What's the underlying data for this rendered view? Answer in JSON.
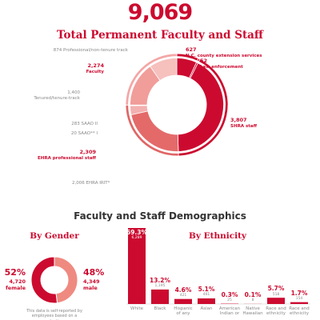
{
  "header": {
    "total": "9,069",
    "title": "Total Permanent Faculty and Staff"
  },
  "section_title": "Faculty and Staff Demographics",
  "chart_data": [
    {
      "type": "donut",
      "segments": [
        {
          "name": "N.C. county extension services",
          "value": 627,
          "value_label": "627",
          "color": "#cc0a2f"
        },
        {
          "name": "Law enforcement",
          "value": 52,
          "value_label": "52",
          "color": "#cc0a2f"
        },
        {
          "name": "SHRA staff",
          "value": 3807,
          "value_label": "3,807",
          "color": "#cc0a2f"
        },
        {
          "name": "EHRA professional staff",
          "value": 2309,
          "value_label": "2,309",
          "color": "#e06666",
          "children": [
            {
              "name": "EHRA IRIT*",
              "value": 2006,
              "value_label": "2,006",
              "color": "#e46a6a"
            },
            {
              "name": "SAAO II",
              "value": 283,
              "value_label": "283",
              "color": "#f3b0b0"
            },
            {
              "name": "SAAO** I",
              "value": 20,
              "value_label": "20",
              "color": "#f3b0b0"
            }
          ]
        },
        {
          "name": "Faculty",
          "value": 2274,
          "value_label": "2,274",
          "color": "#f4a6a6",
          "children": [
            {
              "name": "Tenured/tenure-track",
              "value": 1400,
              "value_label": "1,400",
              "color": "#f19d9a"
            },
            {
              "name": "Professional/non-tenure track",
              "value": 874,
              "value_label": "874",
              "color": "#f6c0bd"
            }
          ]
        }
      ]
    },
    {
      "type": "donut",
      "title": "By Gender",
      "segments": [
        {
          "name": "female",
          "value": 52,
          "value_label": "52%",
          "count": 4720,
          "count_label": "4,720",
          "color": "#cc0a2f"
        },
        {
          "name": "male",
          "value": 48,
          "value_label": "48%",
          "count": 4349,
          "count_label": "4,349",
          "color": "#ef8a80"
        }
      ],
      "note": "This data is self-reported by employees based on a selection"
    },
    {
      "type": "bar",
      "title": "By Ethnicity",
      "color": "#cc0a2f",
      "categories": [
        "White",
        "Black",
        "Hispanic of any",
        "Asian",
        "American Indian or",
        "Native Hawaiian",
        "Race and ethnicity",
        "Race and ethnicity"
      ],
      "values": [
        69.3,
        13.2,
        4.6,
        5.1,
        0.3,
        0.1,
        5.7,
        1.7
      ],
      "value_labels": [
        "69.3%",
        "13.2%",
        "4.6%",
        "5.1%",
        "0.3%",
        "0.1%",
        "5.7%",
        "1.7%"
      ],
      "counts": [
        6289,
        1195,
        421,
        461,
        25,
        8,
        518,
        154
      ],
      "count_labels": [
        "6,289",
        "1,195",
        "421",
        "461",
        "25",
        "8",
        "518",
        "154"
      ]
    }
  ]
}
